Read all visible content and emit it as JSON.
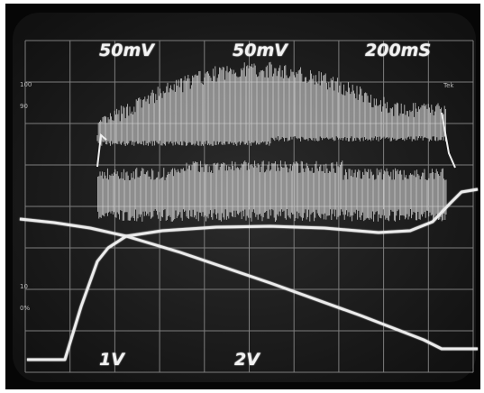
{
  "readouts": {
    "top": [
      "50mV",
      "50mV",
      "200mS"
    ],
    "bottom": [
      "1V",
      "2V"
    ]
  },
  "brand": "Tek",
  "graticule_labels": [
    "100",
    "90",
    "10",
    "0%"
  ]
}
